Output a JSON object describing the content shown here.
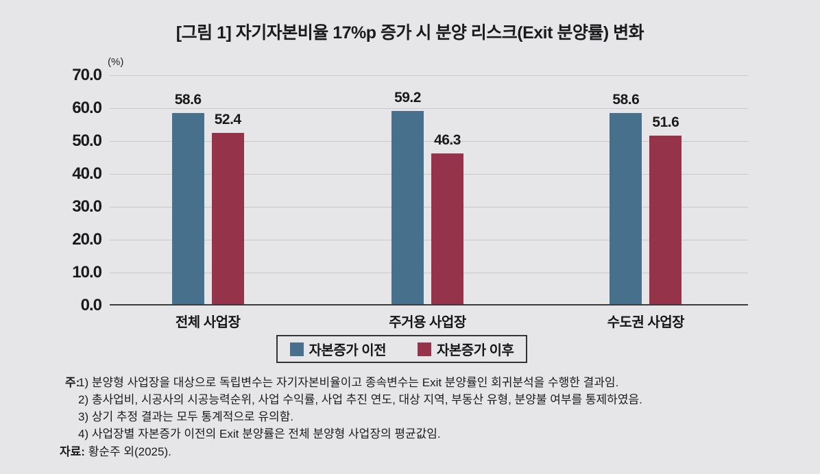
{
  "figure_title": "[그림 1] 자기자본비율 17%p 증가 시 분양 리스크(Exit 분양률) 변화",
  "chart_data": {
    "type": "bar",
    "title": "[그림 1] 자기자본비율 17%p 증가 시 분양 리스크(Exit 분양률) 변화",
    "unit_label": "(%)",
    "categories": [
      "전체 사업장",
      "주거용 사업장",
      "수도권 사업장"
    ],
    "series": [
      {
        "name": "자본증가 이전",
        "color": "#47708d",
        "values": [
          58.6,
          59.2,
          58.6
        ]
      },
      {
        "name": "자본증가 이후",
        "color": "#943349",
        "values": [
          52.4,
          46.3,
          51.6
        ]
      }
    ],
    "ylim": [
      0,
      70
    ],
    "ytick_step": 10,
    "ytick_labels": [
      "0.0",
      "10.0",
      "20.0",
      "30.0",
      "40.0",
      "50.0",
      "60.0",
      "70.0"
    ],
    "grid": "horizontal",
    "legend_position": "bottom",
    "value_labels_shown": true
  },
  "notes": {
    "label": "주:",
    "lines": [
      "1) 분양형 사업장을 대상으로 독립변수는 자기자본비율이고 종속변수는 Exit 분양률인 회귀분석을 수행한 결과임.",
      "2) 총사업비, 시공사의 시공능력순위, 사업 수익률, 사업 추진 연도, 대상 지역, 부동산 유형, 분양불 여부를 통제하였음.",
      "3) 상기 추정 결과는 모두 통계적으로 유의함.",
      "4) 사업장별 자본증가 이전의 Exit 분양률은 전체 분양형 사업장의 평균값임."
    ]
  },
  "source": {
    "label": "자료:",
    "text": "황순주 외(2025)."
  },
  "style": {
    "background": "#e6e5e7",
    "grid_color": "#c8c7ca",
    "axis_color": "#3b3b3b",
    "text_color": "#1a1a1a"
  }
}
